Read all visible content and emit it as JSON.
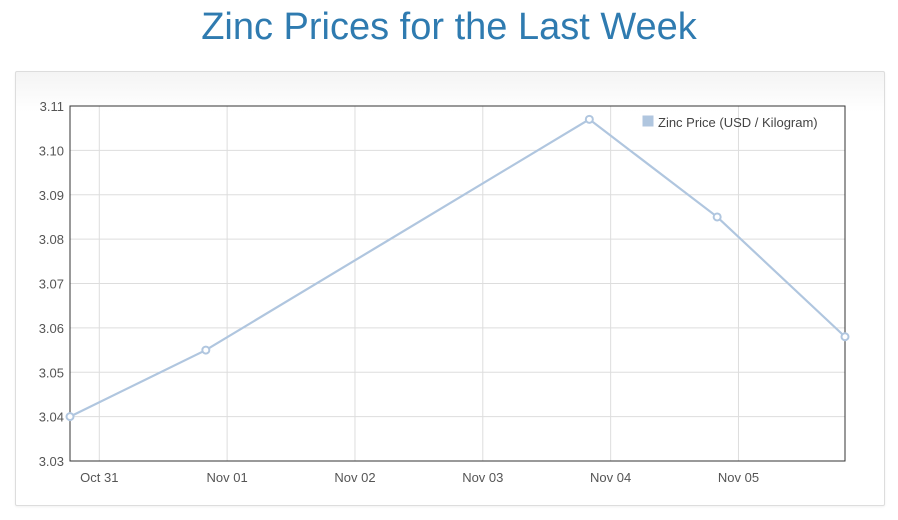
{
  "title": "Zinc Prices for the Last Week",
  "colors": {
    "title": "#2f7bb0",
    "series": "#b0c6df",
    "grid": "#dddddd",
    "axis": "#333333"
  },
  "chart_data": {
    "type": "line",
    "title": "Zinc Prices for the Last Week",
    "xlabel": "",
    "ylabel": "",
    "grid": true,
    "legend_position": "top-right",
    "x_ticks": [
      "Oct 31",
      "Nov 01",
      "Nov 02",
      "Nov 03",
      "Nov 04",
      "Nov 05"
    ],
    "y_ticks": [
      "3.03",
      "3.04",
      "3.05",
      "3.06",
      "3.07",
      "3.08",
      "3.09",
      "3.10",
      "3.11"
    ],
    "ylim": [
      3.03,
      3.11
    ],
    "xlim": [
      "Oct 30 18:30",
      "Nov 05 20:00"
    ],
    "series": [
      {
        "name": "Zinc Price (USD / Kilogram)",
        "points": [
          {
            "x": "Oct 30 18:30",
            "y": 3.04
          },
          {
            "x": "Oct 31 20:00",
            "y": 3.055
          },
          {
            "x": "Nov 03 20:00",
            "y": 3.107
          },
          {
            "x": "Nov 04 20:00",
            "y": 3.085
          },
          {
            "x": "Nov 05 20:00",
            "y": 3.058
          }
        ]
      }
    ]
  }
}
